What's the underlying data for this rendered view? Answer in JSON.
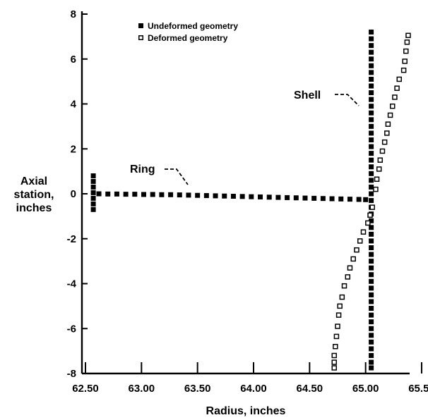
{
  "chart_data": {
    "type": "scatter",
    "xlabel": "Radius, inches",
    "ylabel_lines": [
      "Axial",
      "station,",
      "inches"
    ],
    "xlim": [
      62.5,
      65.5
    ],
    "ylim": [
      -8,
      8
    ],
    "x_ticks": [
      62.5,
      63.0,
      63.5,
      64.0,
      64.5,
      65.0,
      65.5
    ],
    "x_tick_labels": [
      "62.50",
      "63.00",
      "63.50",
      "64.00",
      "64.50",
      "65.00",
      "65.50"
    ],
    "y_ticks": [
      -8,
      -6,
      -4,
      -2,
      0,
      2,
      4,
      6,
      8
    ],
    "y_tick_labels": [
      "-8",
      "-6",
      "-4",
      "-2",
      "0",
      "2",
      "4",
      "6",
      "8"
    ],
    "grid": false,
    "legend_position": "top-left",
    "legend": [
      {
        "label": "Undeformed geometry",
        "marker": "filled-square"
      },
      {
        "label": "Deformed geometry",
        "marker": "open-square"
      }
    ],
    "annotations": [
      {
        "text": "Ring",
        "x": 63.4,
        "y": 0.2
      },
      {
        "text": "Shell",
        "x": 65.0,
        "y": 4.0
      }
    ],
    "series": [
      {
        "name": "Undeformed geometry",
        "marker": "filled-square",
        "points": [
          [
            62.57,
            0.8
          ],
          [
            62.57,
            0.55
          ],
          [
            62.57,
            0.3
          ],
          [
            62.57,
            0.05
          ],
          [
            62.57,
            -0.2
          ],
          [
            62.57,
            -0.45
          ],
          [
            62.57,
            -0.7
          ],
          [
            62.62,
            0.0
          ],
          [
            62.7,
            -0.01
          ],
          [
            62.78,
            -0.01
          ],
          [
            62.86,
            -0.02
          ],
          [
            62.94,
            -0.02
          ],
          [
            63.02,
            -0.03
          ],
          [
            63.1,
            -0.03
          ],
          [
            63.18,
            -0.04
          ],
          [
            63.26,
            -0.04
          ],
          [
            63.34,
            -0.05
          ],
          [
            63.42,
            -0.06
          ],
          [
            63.5,
            -0.07
          ],
          [
            63.58,
            -0.08
          ],
          [
            63.66,
            -0.09
          ],
          [
            63.74,
            -0.1
          ],
          [
            63.82,
            -0.11
          ],
          [
            63.9,
            -0.12
          ],
          [
            63.98,
            -0.13
          ],
          [
            64.06,
            -0.14
          ],
          [
            64.14,
            -0.15
          ],
          [
            64.22,
            -0.16
          ],
          [
            64.3,
            -0.17
          ],
          [
            64.38,
            -0.18
          ],
          [
            64.46,
            -0.19
          ],
          [
            64.54,
            -0.2
          ],
          [
            64.62,
            -0.21
          ],
          [
            64.7,
            -0.22
          ],
          [
            64.78,
            -0.23
          ],
          [
            64.86,
            -0.24
          ],
          [
            64.94,
            -0.25
          ],
          [
            65.0,
            -0.26
          ],
          [
            65.05,
            7.2
          ],
          [
            65.05,
            6.9
          ],
          [
            65.05,
            6.6
          ],
          [
            65.05,
            6.3
          ],
          [
            65.05,
            6.0
          ],
          [
            65.05,
            5.7
          ],
          [
            65.05,
            5.4
          ],
          [
            65.05,
            5.1
          ],
          [
            65.05,
            4.8
          ],
          [
            65.05,
            4.5
          ],
          [
            65.05,
            4.2
          ],
          [
            65.05,
            3.9
          ],
          [
            65.05,
            3.6
          ],
          [
            65.05,
            3.3
          ],
          [
            65.05,
            3.0
          ],
          [
            65.05,
            2.7
          ],
          [
            65.05,
            2.4
          ],
          [
            65.05,
            2.1
          ],
          [
            65.05,
            1.8
          ],
          [
            65.05,
            1.5
          ],
          [
            65.05,
            1.2
          ],
          [
            65.05,
            0.9
          ],
          [
            65.05,
            0.6
          ],
          [
            65.05,
            0.3
          ],
          [
            65.05,
            0.0
          ],
          [
            65.05,
            -0.3
          ],
          [
            65.05,
            -0.6
          ],
          [
            65.05,
            -0.9
          ],
          [
            65.05,
            -1.2
          ],
          [
            65.05,
            -1.5
          ],
          [
            65.05,
            -1.8
          ],
          [
            65.05,
            -2.1
          ],
          [
            65.05,
            -2.4
          ],
          [
            65.05,
            -2.7
          ],
          [
            65.05,
            -3.0
          ],
          [
            65.05,
            -3.3
          ],
          [
            65.05,
            -3.6
          ],
          [
            65.05,
            -3.9
          ],
          [
            65.05,
            -4.2
          ],
          [
            65.05,
            -4.5
          ],
          [
            65.05,
            -4.8
          ],
          [
            65.05,
            -5.1
          ],
          [
            65.05,
            -5.4
          ],
          [
            65.05,
            -5.7
          ],
          [
            65.05,
            -6.0
          ],
          [
            65.05,
            -6.3
          ],
          [
            65.05,
            -6.6
          ],
          [
            65.05,
            -6.9
          ],
          [
            65.05,
            -7.2
          ],
          [
            65.05,
            -7.5
          ],
          [
            65.05,
            -7.75
          ]
        ]
      },
      {
        "name": "Deformed geometry",
        "marker": "open-square",
        "points": [
          [
            65.38,
            7.05
          ],
          [
            65.37,
            6.75
          ],
          [
            65.36,
            6.35
          ],
          [
            65.35,
            5.9
          ],
          [
            65.34,
            5.5
          ],
          [
            65.3,
            5.1
          ],
          [
            65.28,
            4.7
          ],
          [
            65.26,
            4.3
          ],
          [
            65.24,
            3.9
          ],
          [
            65.22,
            3.5
          ],
          [
            65.2,
            3.1
          ],
          [
            65.19,
            2.7
          ],
          [
            65.17,
            2.3
          ],
          [
            65.15,
            1.9
          ],
          [
            65.13,
            1.5
          ],
          [
            65.12,
            1.1
          ],
          [
            65.1,
            0.65
          ],
          [
            65.09,
            0.2
          ],
          [
            65.06,
            -0.6
          ],
          [
            65.04,
            -0.95
          ],
          [
            65.02,
            -1.3
          ],
          [
            64.98,
            -1.7
          ],
          [
            64.95,
            -2.1
          ],
          [
            64.92,
            -2.5
          ],
          [
            64.89,
            -2.9
          ],
          [
            64.86,
            -3.3
          ],
          [
            64.84,
            -3.7
          ],
          [
            64.81,
            -4.1
          ],
          [
            64.79,
            -4.6
          ],
          [
            64.77,
            -5.0
          ],
          [
            64.76,
            -5.4
          ],
          [
            64.75,
            -5.9
          ],
          [
            64.74,
            -6.35
          ],
          [
            64.73,
            -6.8
          ],
          [
            64.72,
            -7.2
          ],
          [
            64.72,
            -7.5
          ],
          [
            64.72,
            -7.75
          ]
        ]
      }
    ]
  }
}
